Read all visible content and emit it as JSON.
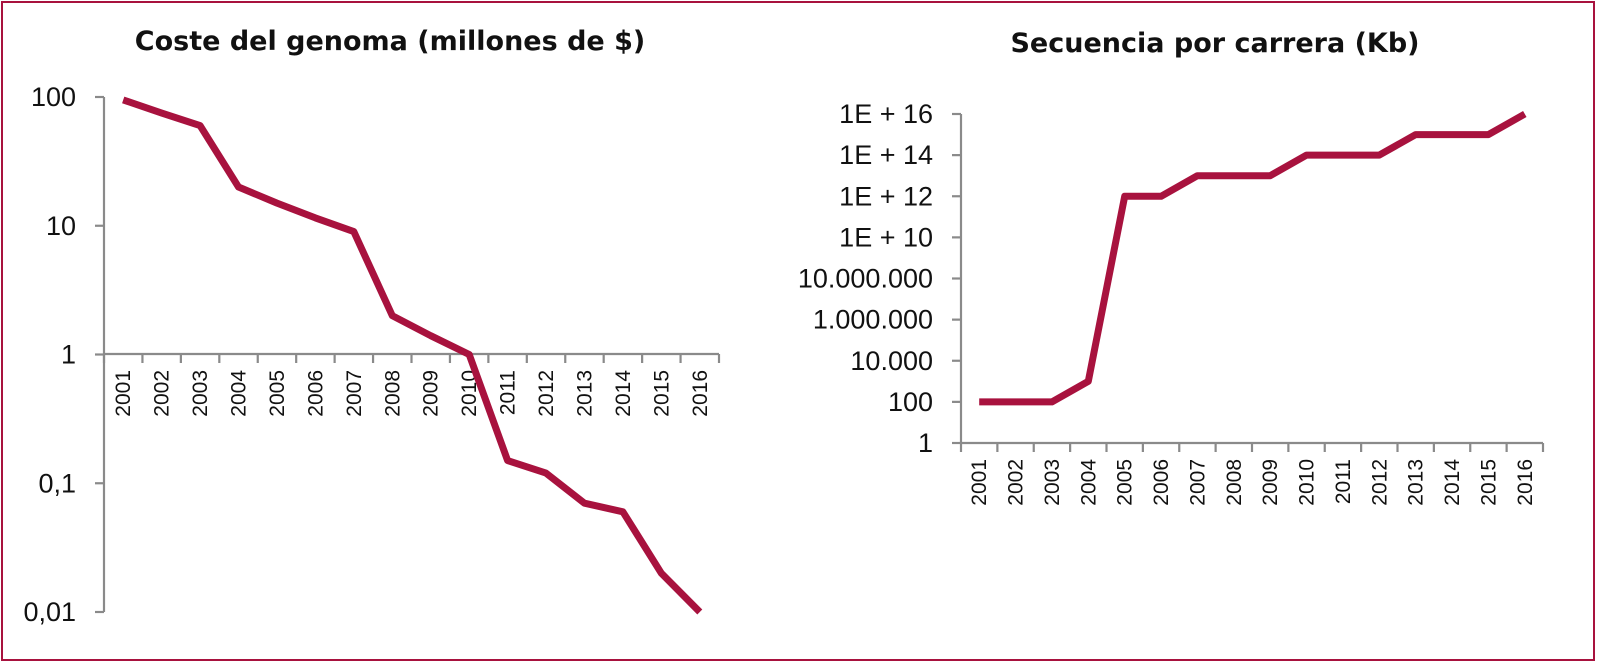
{
  "colors": {
    "line": "#a8123e",
    "border": "#a8123e",
    "axis": "#8a8a8a",
    "text": "#111111"
  },
  "chart_data": [
    {
      "type": "line",
      "title": "Coste del genoma (millones de $)",
      "xlabel": "",
      "ylabel": "",
      "yscale": "log",
      "ylim": [
        0.01,
        100
      ],
      "yticks": [
        100,
        10,
        1,
        0.1,
        0.01
      ],
      "ytick_labels": [
        "100",
        "10",
        "1",
        "0,1",
        "0,01"
      ],
      "categories": [
        "2001",
        "2002",
        "2003",
        "2004",
        "2005",
        "2006",
        "2007",
        "2008",
        "2009",
        "2010",
        "2011",
        "2012",
        "2013",
        "2014",
        "2015",
        "2016"
      ],
      "series": [
        {
          "values": [
            95,
            75,
            60,
            20,
            15,
            11.5,
            9,
            2,
            1.4,
            1.0,
            0.15,
            0.12,
            0.07,
            0.06,
            0.02,
            0.01
          ]
        }
      ],
      "grid": false,
      "legend": "none"
    },
    {
      "type": "line",
      "title": "Secuencia por carrera (Kb)",
      "xlabel": "",
      "ylabel": "",
      "yscale": "log",
      "ylim": [
        1,
        1e+16
      ],
      "yticks": [
        1e+16,
        100000000000000.0,
        1000000000000.0,
        10000000000.0,
        10000000.0,
        1000000.0,
        10000.0,
        100,
        1
      ],
      "ytick_labels": [
        "1E + 16",
        "1E + 14",
        "1E + 12",
        "1E + 10",
        "10.000.000",
        "1.000.000",
        "10.000",
        "100",
        "1"
      ],
      "categories": [
        "2001",
        "2002",
        "2003",
        "2004",
        "2005",
        "2006",
        "2007",
        "2008",
        "2009",
        "2010",
        "2011",
        "2012",
        "2013",
        "2014",
        "2015",
        "2016"
      ],
      "series": [
        {
          "values": [
            100,
            100,
            100,
            1000,
            1000000000000.0,
            1000000000000.0,
            10000000000000.0,
            10000000000000.0,
            10000000000000.0,
            100000000000000.0,
            100000000000000.0,
            100000000000000.0,
            1000000000000000.0,
            1000000000000000.0,
            1000000000000000.0,
            1e+16
          ]
        }
      ],
      "grid": false,
      "legend": "none"
    }
  ]
}
